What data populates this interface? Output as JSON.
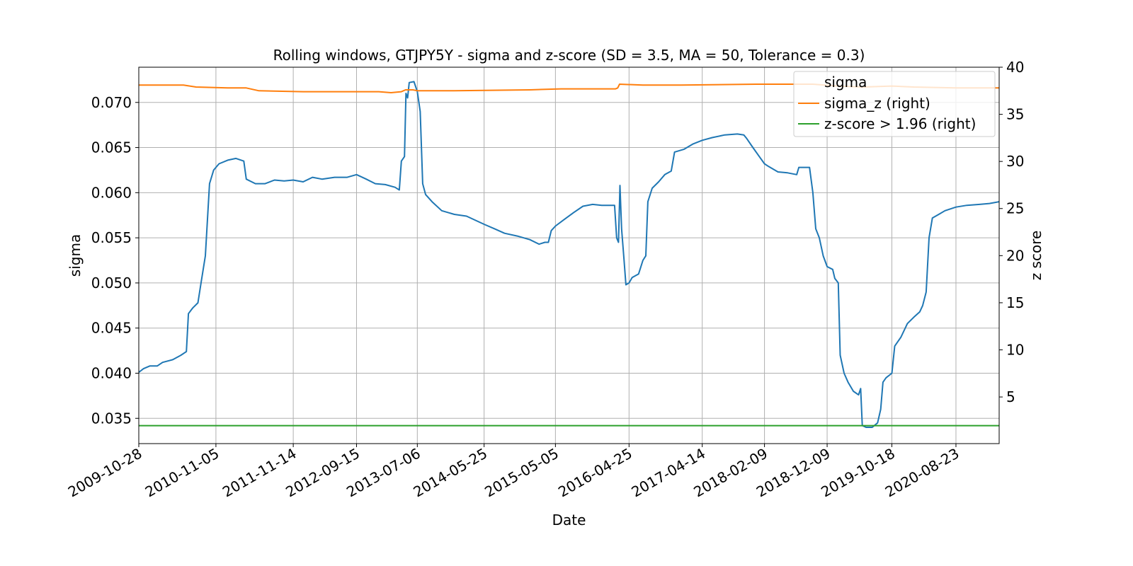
{
  "chart_data": {
    "type": "line",
    "title": "Rolling windows, GTJPY5Y - sigma and z-score (SD = 3.5, MA = 50, Tolerance  = 0.3)",
    "xlabel": "Date",
    "ylabel": "sigma",
    "y2label": "z score",
    "ylim": [
      0.0322,
      0.0739
    ],
    "y2lim": [
      0.05,
      40.0
    ],
    "xlim": [
      "2009-10-28",
      "2021-03-20"
    ],
    "grid": true,
    "legend_position": "top-right",
    "legend_title": "sigma",
    "x_tick_labels": [
      "2009-10-28",
      "2010-11-05",
      "2011-11-14",
      "2012-09-15",
      "2013-07-06",
      "2014-05-25",
      "2015-05-05",
      "2016-04-25",
      "2017-04-14",
      "2018-02-09",
      "2018-12-09",
      "2019-10-18",
      "2020-08-23"
    ],
    "y_ticks": [
      "0.035",
      "0.040",
      "0.045",
      "0.050",
      "0.055",
      "0.060",
      "0.065",
      "0.070"
    ],
    "y2_ticks": [
      "5",
      "10",
      "15",
      "20",
      "25",
      "30",
      "35",
      "40"
    ],
    "series": [
      {
        "name": "",
        "axis": "left",
        "color": "#1f77b4",
        "points": [
          [
            "2009-10-28",
            0.0401
          ],
          [
            "2009-11-20",
            0.0405
          ],
          [
            "2009-12-20",
            0.0408
          ],
          [
            "2010-01-25",
            0.0408
          ],
          [
            "2010-02-20",
            0.0412
          ],
          [
            "2010-04-10",
            0.0415
          ],
          [
            "2010-05-20",
            0.042
          ],
          [
            "2010-06-15",
            0.0424
          ],
          [
            "2010-06-25",
            0.0466
          ],
          [
            "2010-07-15",
            0.0472
          ],
          [
            "2010-08-10",
            0.0478
          ],
          [
            "2010-08-25",
            0.05
          ],
          [
            "2010-09-15",
            0.053
          ],
          [
            "2010-10-05",
            0.061
          ],
          [
            "2010-10-25",
            0.0625
          ],
          [
            "2010-11-20",
            0.0632
          ],
          [
            "2011-01-01",
            0.0636
          ],
          [
            "2011-02-10",
            0.0638
          ],
          [
            "2011-03-20",
            0.0635
          ],
          [
            "2011-04-01",
            0.0615
          ],
          [
            "2011-05-15",
            0.061
          ],
          [
            "2011-07-01",
            0.061
          ],
          [
            "2011-08-15",
            0.0614
          ],
          [
            "2011-10-01",
            0.0613
          ],
          [
            "2011-11-14",
            0.0614
          ],
          [
            "2012-01-01",
            0.0612
          ],
          [
            "2012-02-15",
            0.0617
          ],
          [
            "2012-04-01",
            0.0615
          ],
          [
            "2012-06-01",
            0.0617
          ],
          [
            "2012-08-01",
            0.0617
          ],
          [
            "2012-09-15",
            0.062
          ],
          [
            "2012-11-01",
            0.0615
          ],
          [
            "2012-12-15",
            0.061
          ],
          [
            "2013-02-01",
            0.0609
          ],
          [
            "2013-03-20",
            0.0606
          ],
          [
            "2013-04-10",
            0.0603
          ],
          [
            "2013-04-20",
            0.0635
          ],
          [
            "2013-05-05",
            0.064
          ],
          [
            "2013-05-12",
            0.071
          ],
          [
            "2013-05-20",
            0.0705
          ],
          [
            "2013-05-28",
            0.0722
          ],
          [
            "2013-06-20",
            0.0723
          ],
          [
            "2013-07-06",
            0.0712
          ],
          [
            "2013-07-20",
            0.069
          ],
          [
            "2013-08-01",
            0.061
          ],
          [
            "2013-08-15",
            0.0598
          ],
          [
            "2013-09-15",
            0.059
          ],
          [
            "2013-11-01",
            0.058
          ],
          [
            "2014-01-01",
            0.0576
          ],
          [
            "2014-03-01",
            0.0574
          ],
          [
            "2014-05-25",
            0.0565
          ],
          [
            "2014-07-15",
            0.056
          ],
          [
            "2014-09-01",
            0.0555
          ],
          [
            "2014-11-01",
            0.0552
          ],
          [
            "2015-01-01",
            0.0548
          ],
          [
            "2015-02-15",
            0.0543
          ],
          [
            "2015-03-15",
            0.0545
          ],
          [
            "2015-04-01",
            0.0545
          ],
          [
            "2015-04-15",
            0.0558
          ],
          [
            "2015-05-05",
            0.0563
          ],
          [
            "2015-06-15",
            0.057
          ],
          [
            "2015-08-01",
            0.0578
          ],
          [
            "2015-09-15",
            0.0585
          ],
          [
            "2015-11-01",
            0.0587
          ],
          [
            "2015-12-15",
            0.0586
          ],
          [
            "2016-01-15",
            0.0586
          ],
          [
            "2016-02-15",
            0.0586
          ],
          [
            "2016-02-25",
            0.055
          ],
          [
            "2016-03-05",
            0.0545
          ],
          [
            "2016-03-12",
            0.0608
          ],
          [
            "2016-03-20",
            0.056
          ],
          [
            "2016-04-01",
            0.0525
          ],
          [
            "2016-04-10",
            0.0498
          ],
          [
            "2016-04-25",
            0.05
          ],
          [
            "2016-05-10",
            0.0506
          ],
          [
            "2016-06-10",
            0.051
          ],
          [
            "2016-07-01",
            0.0525
          ],
          [
            "2016-07-15",
            0.053
          ],
          [
            "2016-07-25",
            0.059
          ],
          [
            "2016-08-15",
            0.0605
          ],
          [
            "2016-09-15",
            0.0612
          ],
          [
            "2016-10-15",
            0.062
          ],
          [
            "2016-11-15",
            0.0624
          ],
          [
            "2016-12-01",
            0.0645
          ],
          [
            "2017-01-15",
            0.0648
          ],
          [
            "2017-03-01",
            0.0654
          ],
          [
            "2017-04-14",
            0.0658
          ],
          [
            "2017-06-01",
            0.0661
          ],
          [
            "2017-08-01",
            0.0664
          ],
          [
            "2017-10-01",
            0.0665
          ],
          [
            "2017-11-01",
            0.0664
          ],
          [
            "2017-11-15",
            0.066
          ],
          [
            "2017-12-15",
            0.065
          ],
          [
            "2018-01-15",
            0.064
          ],
          [
            "2018-02-09",
            0.0632
          ],
          [
            "2018-03-01",
            0.0629
          ],
          [
            "2018-04-15",
            0.0623
          ],
          [
            "2018-06-01",
            0.0622
          ],
          [
            "2018-07-15",
            0.062
          ],
          [
            "2018-07-25",
            0.0628
          ],
          [
            "2018-09-15",
            0.0628
          ],
          [
            "2018-10-01",
            0.06
          ],
          [
            "2018-10-15",
            0.056
          ],
          [
            "2018-11-01",
            0.055
          ],
          [
            "2018-11-20",
            0.053
          ],
          [
            "2018-12-09",
            0.0518
          ],
          [
            "2019-01-05",
            0.0515
          ],
          [
            "2019-01-15",
            0.0505
          ],
          [
            "2019-02-01",
            0.05
          ],
          [
            "2019-02-10",
            0.042
          ],
          [
            "2019-03-01",
            0.04
          ],
          [
            "2019-03-20",
            0.039
          ],
          [
            "2019-04-15",
            0.038
          ],
          [
            "2019-05-10",
            0.0376
          ],
          [
            "2019-05-20",
            0.0383
          ],
          [
            "2019-05-28",
            0.0342
          ],
          [
            "2019-06-15",
            0.034
          ],
          [
            "2019-07-15",
            0.034
          ],
          [
            "2019-08-10",
            0.0345
          ],
          [
            "2019-08-25",
            0.036
          ],
          [
            "2019-09-05",
            0.039
          ],
          [
            "2019-09-20",
            0.0395
          ],
          [
            "2019-10-18",
            0.04
          ],
          [
            "2019-11-01",
            0.043
          ],
          [
            "2019-12-01",
            0.044
          ],
          [
            "2020-01-01",
            0.0455
          ],
          [
            "2020-02-01",
            0.0462
          ],
          [
            "2020-03-01",
            0.0468
          ],
          [
            "2020-03-15",
            0.0475
          ],
          [
            "2020-04-01",
            0.049
          ],
          [
            "2020-04-15",
            0.055
          ],
          [
            "2020-05-01",
            0.0572
          ],
          [
            "2020-06-01",
            0.0576
          ],
          [
            "2020-07-01",
            0.058
          ],
          [
            "2020-08-23",
            0.0584
          ],
          [
            "2020-10-15",
            0.0586
          ],
          [
            "2020-12-15",
            0.0587
          ],
          [
            "2021-02-01",
            0.0588
          ],
          [
            "2021-03-20",
            0.059
          ]
        ]
      },
      {
        "name": "sigma_z (right)",
        "axis": "right",
        "color": "#ff7f0e",
        "points": [
          [
            "2009-10-28",
            38.1
          ],
          [
            "2010-06-01",
            38.1
          ],
          [
            "2010-08-01",
            37.9
          ],
          [
            "2011-01-01",
            37.8
          ],
          [
            "2011-04-01",
            37.8
          ],
          [
            "2011-06-01",
            37.5
          ],
          [
            "2012-01-01",
            37.4
          ],
          [
            "2013-01-01",
            37.4
          ],
          [
            "2013-03-01",
            37.3
          ],
          [
            "2013-04-20",
            37.4
          ],
          [
            "2013-05-10",
            37.6
          ],
          [
            "2013-06-15",
            37.6
          ],
          [
            "2013-07-06",
            37.5
          ],
          [
            "2014-01-01",
            37.5
          ],
          [
            "2015-01-01",
            37.6
          ],
          [
            "2015-06-01",
            37.7
          ],
          [
            "2016-02-20",
            37.7
          ],
          [
            "2016-03-01",
            37.8
          ],
          [
            "2016-03-10",
            38.2
          ],
          [
            "2016-07-01",
            38.1
          ],
          [
            "2017-01-01",
            38.1
          ],
          [
            "2018-01-01",
            38.2
          ],
          [
            "2018-10-01",
            38.2
          ],
          [
            "2019-02-01",
            38.0
          ],
          [
            "2019-06-01",
            37.9
          ],
          [
            "2019-10-18",
            38.0
          ],
          [
            "2020-02-01",
            37.9
          ],
          [
            "2020-08-23",
            37.8
          ],
          [
            "2021-03-20",
            37.8
          ]
        ]
      },
      {
        "name": "z-score > 1.96 (right)",
        "axis": "right",
        "color": "#2ca02c",
        "points": [
          [
            "2009-10-28",
            1.96
          ],
          [
            "2021-03-20",
            1.96
          ]
        ]
      }
    ]
  }
}
